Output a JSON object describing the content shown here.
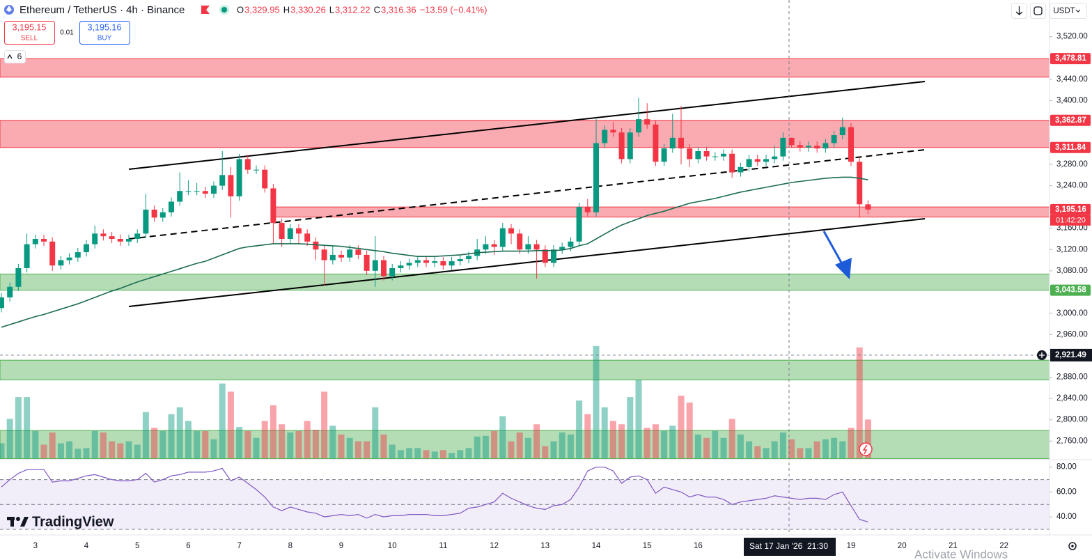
{
  "header": {
    "symbol": "Ethereum / TetherUS · 4h · Binance",
    "ohlc": [
      {
        "key": "O",
        "value": "3,329.95"
      },
      {
        "key": "H",
        "value": "3,330.26"
      },
      {
        "key": "L",
        "value": "3,312.22"
      },
      {
        "key": "C",
        "value": "3,316.36"
      }
    ],
    "change": "−13.59 (−0.41%)"
  },
  "trade": {
    "sell_price": "3,195.15",
    "sell_label": "SELL",
    "spread": "0.01",
    "buy_price": "3,195.16",
    "buy_label": "BUY"
  },
  "indicators_count": "6",
  "currency": "USDT",
  "crosshair_date": "Sat 17 Jan '26",
  "crosshair_time": "21:30",
  "countdown": "01:42:20",
  "logo": "TradingView",
  "watermark": "Activate Windows",
  "chart_data": {
    "type": "candlestick",
    "up_color": "#089981",
    "down_color": "#f23645",
    "categories": [
      null,
      null,
      null,
      null,
      "3",
      null,
      null,
      null,
      null,
      null,
      "4",
      null,
      null,
      null,
      null,
      null,
      "5",
      null,
      null,
      null,
      null,
      null,
      "6",
      null,
      null,
      null,
      null,
      null,
      "7",
      null,
      null,
      null,
      null,
      null,
      "8",
      null,
      null,
      null,
      null,
      null,
      "9",
      null,
      null,
      null,
      null,
      null,
      "10",
      null,
      null,
      null,
      null,
      null,
      "11",
      null,
      null,
      null,
      null,
      null,
      "12",
      null,
      null,
      null,
      null,
      null,
      "13",
      null,
      null,
      null,
      null,
      null,
      "14",
      null,
      null,
      null,
      null,
      null,
      "15",
      null,
      null,
      null,
      null,
      null,
      "16",
      null,
      null,
      null,
      null,
      null,
      null,
      null,
      null,
      null,
      null,
      null,
      null,
      null,
      null,
      null,
      null,
      null,
      "19",
      null,
      null,
      null,
      null,
      null,
      "20",
      null,
      null,
      null,
      null,
      null,
      "21",
      null,
      null,
      null,
      null,
      null,
      "22",
      null,
      null
    ],
    "open": [
      3010,
      3030,
      3050,
      3085,
      3130,
      3140,
      3135,
      3090,
      3100,
      3105,
      3115,
      3130,
      3150,
      3145,
      3140,
      3135,
      3140,
      3150,
      3195,
      3180,
      3190,
      3210,
      3230,
      3230,
      3230,
      3225,
      3240,
      3260,
      3220,
      3290,
      3270,
      3270,
      3235,
      3170,
      3140,
      3160,
      3150,
      3135,
      3120,
      3100,
      3110,
      3105,
      3120,
      3110,
      3080,
      3100,
      3070,
      3085,
      3090,
      3095,
      3100,
      3095,
      3098,
      3090,
      3098,
      3102,
      3108,
      3120,
      3130,
      3125,
      3160,
      3150,
      3120,
      3130,
      3120,
      3095,
      3120,
      3125,
      3135,
      3200,
      3190,
      3320,
      3345,
      3340,
      3290,
      3340,
      3365,
      3355,
      3285,
      3310,
      3330,
      3310,
      3290,
      3305,
      3295,
      3295,
      3300,
      3265,
      3275,
      3290,
      3285,
      3290,
      3295,
      3329.95,
      3316.36,
      3312,
      3315,
      3310,
      3320,
      3335,
      3350,
      3285,
      3205,
      null,
      null,
      null,
      null,
      null,
      null,
      null,
      null,
      null,
      null,
      null,
      null,
      null,
      null,
      null,
      null,
      null,
      null
    ],
    "high": [
      3038,
      3058,
      3093,
      3150,
      3148,
      3148,
      3143,
      3108,
      3113,
      3123,
      3138,
      3165,
      3158,
      3153,
      3148,
      3148,
      3158,
      3225,
      3203,
      3198,
      3218,
      3265,
      3250,
      3245,
      3238,
      3248,
      3305,
      3275,
      3300,
      3298,
      3278,
      3278,
      3243,
      3178,
      3168,
      3168,
      3158,
      3143,
      3128,
      3128,
      3118,
      3128,
      3128,
      3118,
      3145,
      3108,
      3093,
      3098,
      3103,
      3108,
      3108,
      3106,
      3106,
      3106,
      3110,
      3116,
      3140,
      3145,
      3138,
      3170,
      3168,
      3158,
      3145,
      3138,
      3128,
      3128,
      3133,
      3143,
      3208,
      3215,
      3365,
      3353,
      3360,
      3348,
      3348,
      3405,
      3395,
      3363,
      3318,
      3375,
      3390,
      3318,
      3313,
      3313,
      3303,
      3308,
      3308,
      3283,
      3298,
      3298,
      3298,
      3315,
      3340,
      3330.26,
      3324,
      3323,
      3323,
      3328,
      3343,
      3368,
      3358,
      3293,
      3213,
      null,
      null,
      null,
      null,
      null,
      null,
      null,
      null,
      null,
      null,
      null,
      null,
      null,
      null,
      null,
      null,
      null,
      null
    ],
    "low": [
      3002,
      3022,
      3042,
      3077,
      3122,
      3127,
      3080,
      3082,
      3092,
      3097,
      3107,
      3122,
      3137,
      3132,
      3127,
      3127,
      3132,
      3142,
      3172,
      3172,
      3182,
      3202,
      3222,
      3222,
      3217,
      3217,
      3232,
      3180,
      3212,
      3262,
      3262,
      3227,
      3130,
      3125,
      3132,
      3130,
      3127,
      3100,
      3052,
      3092,
      3097,
      3097,
      3102,
      3072,
      3050,
      3062,
      3062,
      3077,
      3082,
      3087,
      3087,
      3087,
      3082,
      3082,
      3090,
      3094,
      3100,
      3112,
      3110,
      3117,
      3130,
      3112,
      3112,
      3065,
      3087,
      3087,
      3112,
      3117,
      3127,
      3182,
      3182,
      3312,
      3332,
      3282,
      3282,
      3332,
      3347,
      3277,
      3277,
      3302,
      3280,
      3275,
      3282,
      3287,
      3287,
      3287,
      3255,
      3257,
      3267,
      3277,
      3277,
      3282,
      3287,
      3312.22,
      3304,
      3304,
      3302,
      3302,
      3312,
      3327,
      3277,
      3180,
      3187,
      null,
      null,
      null,
      null,
      null,
      null,
      null,
      null,
      null,
      null,
      null,
      null,
      null,
      null,
      null,
      null,
      null,
      null
    ],
    "close": [
      3030,
      3050,
      3085,
      3130,
      3140,
      3135,
      3090,
      3100,
      3105,
      3115,
      3130,
      3150,
      3145,
      3140,
      3135,
      3140,
      3150,
      3195,
      3180,
      3190,
      3210,
      3230,
      3230,
      3230,
      3225,
      3240,
      3260,
      3220,
      3290,
      3270,
      3270,
      3235,
      3170,
      3140,
      3160,
      3150,
      3135,
      3120,
      3100,
      3110,
      3105,
      3120,
      3110,
      3080,
      3100,
      3070,
      3085,
      3090,
      3095,
      3100,
      3095,
      3098,
      3090,
      3098,
      3102,
      3108,
      3120,
      3130,
      3125,
      3160,
      3150,
      3120,
      3130,
      3120,
      3095,
      3120,
      3125,
      3135,
      3200,
      3190,
      3320,
      3345,
      3340,
      3290,
      3340,
      3365,
      3355,
      3285,
      3310,
      3330,
      3310,
      3290,
      3305,
      3295,
      3295,
      3300,
      3265,
      3275,
      3290,
      3285,
      3290,
      3295,
      3329.95,
      3316.36,
      3312,
      3315,
      3310,
      3320,
      3335,
      3350,
      3285,
      3205,
      3195.16,
      null,
      null,
      null,
      null,
      null,
      null,
      null,
      null,
      null,
      null,
      null,
      null,
      null,
      null,
      null,
      null,
      null,
      null
    ],
    "ylim": [
      2725,
      3589
    ],
    "yticks": [
      {
        "value": 3520,
        "label": "3,520.00"
      },
      {
        "value": 3440,
        "label": "3,440.00"
      },
      {
        "value": 3400,
        "label": "3,400.00"
      },
      {
        "value": 3280,
        "label": "3,280.00"
      },
      {
        "value": 3240,
        "label": "3,240.00"
      },
      {
        "value": 3160,
        "label": "3,160.00"
      },
      {
        "value": 3120,
        "label": "3,120.00"
      },
      {
        "value": 3080,
        "label": "3,080.00"
      },
      {
        "value": 3000,
        "label": "3,000.00"
      },
      {
        "value": 2960,
        "label": "2,960.00"
      },
      {
        "value": 2880,
        "label": "2,880.00"
      },
      {
        "value": 2840,
        "label": "2,840.00"
      },
      {
        "value": 2800,
        "label": "2,800.00"
      },
      {
        "value": 2760,
        "label": "2,760.00"
      }
    ],
    "zones": [
      {
        "low": 3444,
        "high": 3478.81,
        "color": "#f23645"
      },
      {
        "low": 3311.84,
        "high": 3362.87,
        "color": "#f23645"
      },
      {
        "low": 3181,
        "high": 3200,
        "color": "#f23645"
      },
      {
        "low": 3043.58,
        "high": 3074,
        "color": "#4caf50"
      },
      {
        "low": 2875,
        "high": 2912,
        "color": "#4caf50"
      },
      {
        "low": 2727,
        "high": 2780,
        "color": "#4caf50"
      }
    ],
    "price_labels": [
      {
        "value": 3478.81,
        "label": "3,478.81",
        "color": "#f23645"
      },
      {
        "value": 3362.87,
        "label": "3,362.87",
        "color": "#f23645"
      },
      {
        "value": 3311.84,
        "label": "3,311.84",
        "color": "#f23645"
      },
      {
        "value": 3195.16,
        "label": "3,195.16",
        "color": "#f23645"
      },
      {
        "value": 3043.58,
        "label": "3,043.58",
        "color": "#4caf50"
      }
    ],
    "crosshair_price": {
      "value": 2921.49,
      "label": "2,921.49"
    },
    "ma": {
      "color": "#1b6b52",
      "values": [
        2974,
        2979,
        2984,
        2989,
        2994,
        2998,
        3003,
        3008,
        3013,
        3018,
        3024,
        3030,
        3036,
        3042,
        3047,
        3053,
        3059,
        3064,
        3069,
        3074,
        3079,
        3084,
        3089,
        3094,
        3098,
        3104,
        3110,
        3116,
        3122,
        3125,
        3127,
        3129,
        3131,
        3131,
        3131,
        3131,
        3130,
        3129,
        3128,
        3127,
        3126,
        3124,
        3122,
        3120,
        3118,
        3116,
        3113,
        3111,
        3109,
        3107,
        3107,
        3107,
        3108,
        3109,
        3110,
        3112,
        3114,
        3115,
        3116,
        3117,
        3117,
        3117,
        3117,
        3118,
        3118,
        3118,
        3119,
        3122,
        3127,
        3131,
        3140,
        3149,
        3158,
        3166,
        3172,
        3178,
        3184,
        3188,
        3192,
        3197,
        3202,
        3207,
        3210,
        3213,
        3216,
        3220,
        3224,
        3228,
        3231,
        3234,
        3237,
        3240,
        3243,
        3246,
        3248,
        3250,
        3252,
        3254,
        3255,
        3256,
        3256,
        3254,
        3251,
        null,
        null,
        null,
        null,
        null,
        null,
        null,
        null,
        null,
        null,
        null,
        null,
        null,
        null,
        null,
        null,
        null,
        null
      ]
    },
    "volume": {
      "ylim": [
        0,
        170
      ],
      "values": [
        22,
        58,
        90,
        90,
        40,
        20,
        38,
        22,
        25,
        14,
        15,
        40,
        38,
        25,
        22,
        25,
        20,
        68,
        45,
        40,
        65,
        75,
        55,
        40,
        40,
        28,
        110,
        98,
        46,
        40,
        30,
        55,
        78,
        50,
        38,
        40,
        55,
        42,
        98,
        48,
        35,
        30,
        25,
        25,
        75,
        35,
        20,
        12,
        15,
        15,
        12,
        10,
        12,
        8,
        12,
        15,
        32,
        33,
        40,
        62,
        25,
        38,
        30,
        50,
        18,
        25,
        38,
        35,
        85,
        65,
        165,
        75,
        55,
        50,
        90,
        115,
        45,
        50,
        40,
        48,
        92,
        82,
        35,
        30,
        40,
        30,
        58,
        35,
        25,
        18,
        15,
        25,
        38,
        28,
        15,
        15,
        25,
        28,
        30,
        25,
        45,
        163,
        57,
        null,
        null,
        null,
        null,
        null,
        null,
        null,
        null,
        null,
        null,
        null,
        null,
        null,
        null,
        null,
        null,
        null,
        null
      ]
    },
    "rsi": {
      "color": "#7e57c2",
      "ylim": [
        30,
        86
      ],
      "bands": [
        30,
        50,
        70
      ],
      "yticks": [
        {
          "value": 80,
          "label": "80.00"
        },
        {
          "value": 60,
          "label": "60.00"
        },
        {
          "value": 40,
          "label": "40.00"
        }
      ],
      "values": [
        64,
        70,
        75,
        78,
        78,
        78,
        68,
        69,
        69,
        71,
        73,
        74,
        72,
        70,
        69,
        69,
        70,
        75,
        68,
        70,
        73,
        74,
        76,
        76,
        76,
        77,
        79,
        69,
        72,
        67,
        62,
        56,
        48,
        45,
        48,
        46,
        44,
        43,
        40,
        41,
        42,
        41,
        42,
        39,
        42,
        40,
        41,
        41,
        42,
        42,
        42,
        41,
        41,
        42,
        43,
        47,
        48,
        50,
        52,
        59,
        55,
        52,
        49,
        47,
        46,
        49,
        50,
        54,
        64,
        77,
        80,
        80,
        77,
        67,
        72,
        73,
        70,
        59,
        64,
        62,
        60,
        56,
        58,
        56,
        56,
        54,
        50,
        52,
        53,
        54,
        55,
        57,
        56,
        55,
        54,
        55,
        55,
        54,
        58,
        60,
        49,
        38,
        36,
        null,
        null,
        null,
        null,
        null,
        null,
        null,
        null,
        null,
        null,
        null,
        null,
        null,
        null,
        null,
        null,
        null,
        null
      ]
    }
  }
}
